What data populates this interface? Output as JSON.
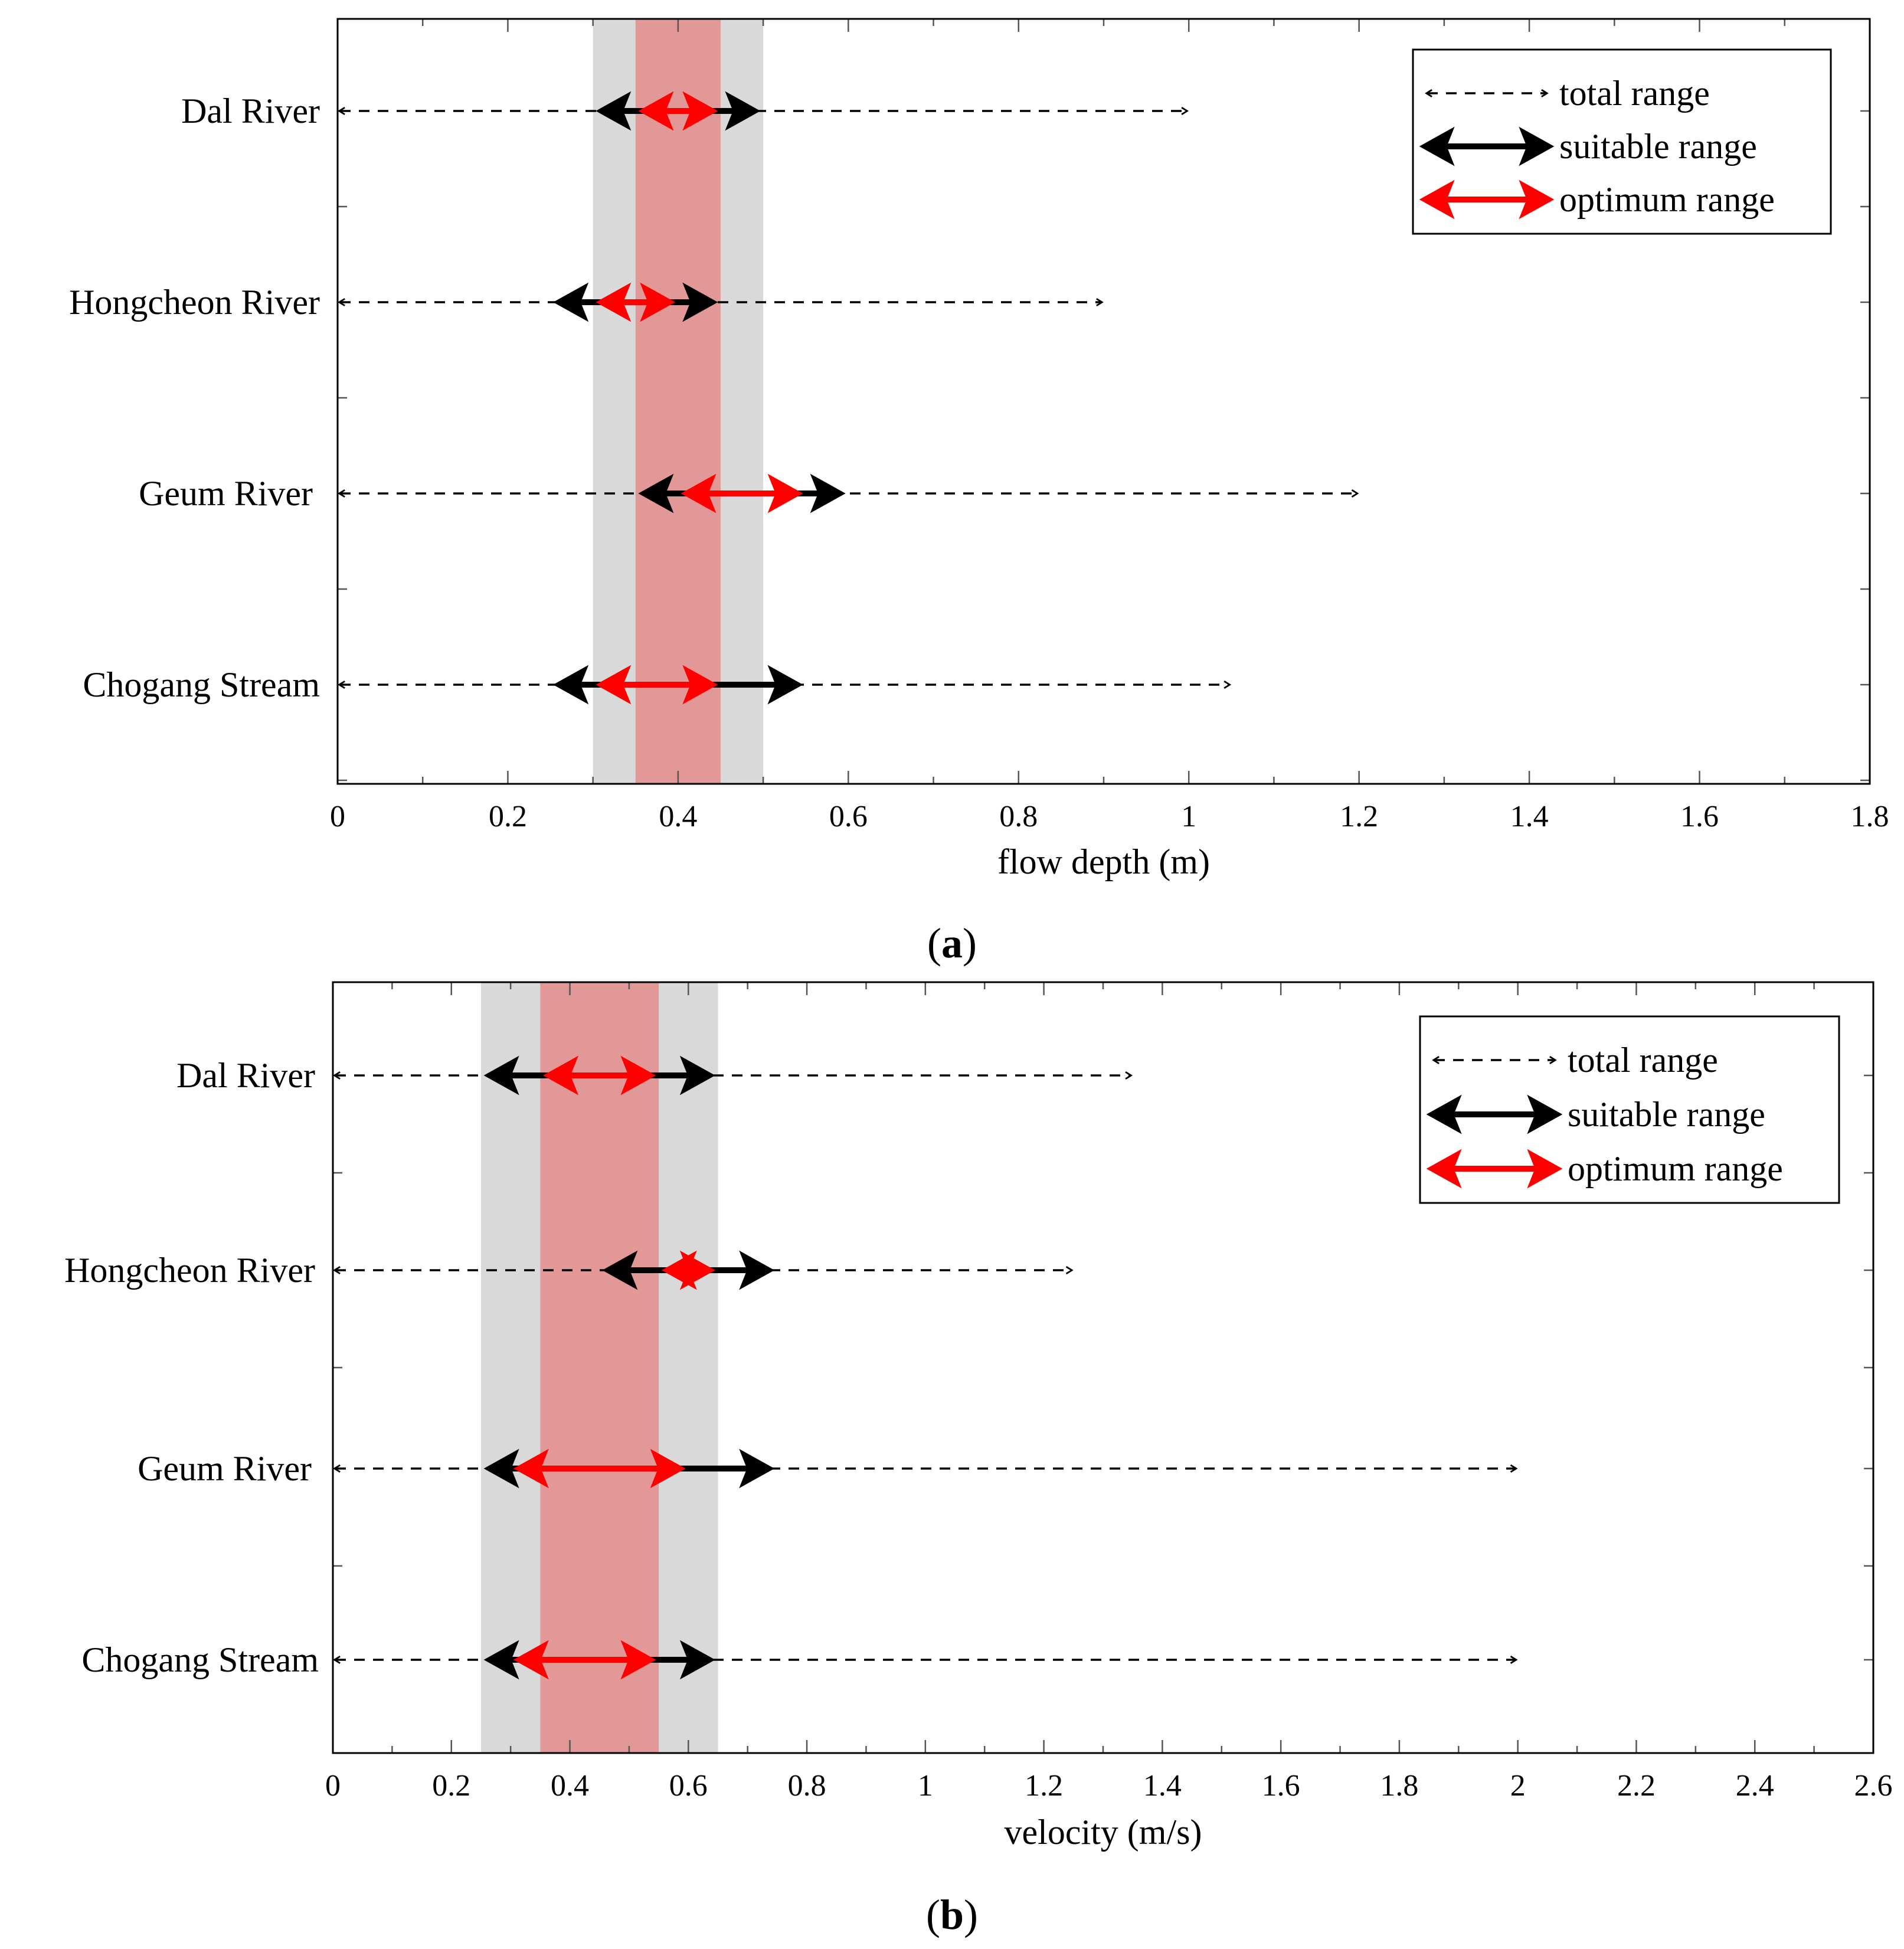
{
  "chart_data": [
    {
      "type": "range",
      "panel_label": {
        "open": "(",
        "letter": "a",
        "close": ")"
      },
      "xlabel": "flow depth (m)",
      "xlim": [
        0,
        1.8
      ],
      "xticks": [
        "0",
        "0.2",
        "0.4",
        "0.6",
        "0.8",
        "1",
        "1.2",
        "1.4",
        "1.6",
        "1.8"
      ],
      "xtick_values": [
        0,
        0.2,
        0.4,
        0.6,
        0.8,
        1.0,
        1.2,
        1.4,
        1.6,
        1.8
      ],
      "categories": [
        "Dal River",
        "Hongcheon River",
        "Geum River",
        "Chogang Stream"
      ],
      "series": [
        {
          "name": "total range",
          "ranges": [
            [
              0,
              1.0
            ],
            [
              0,
              0.9
            ],
            [
              0,
              1.2
            ],
            [
              0,
              1.05
            ]
          ]
        },
        {
          "name": "suitable range",
          "ranges": [
            [
              0.3,
              0.5
            ],
            [
              0.25,
              0.45
            ],
            [
              0.35,
              0.6
            ],
            [
              0.25,
              0.55
            ]
          ]
        },
        {
          "name": "optimum range",
          "ranges": [
            [
              0.35,
              0.45
            ],
            [
              0.3,
              0.4
            ],
            [
              0.4,
              0.55
            ],
            [
              0.3,
              0.45
            ]
          ]
        }
      ],
      "bands": [
        {
          "name": "suitable band",
          "range": [
            0.3,
            0.5
          ],
          "color": "#d9d9d9"
        },
        {
          "name": "optimum band",
          "range": [
            0.35,
            0.45
          ],
          "color": "#e39898"
        }
      ],
      "legend": {
        "position": "top-right",
        "items": [
          "total range",
          "suitable range",
          "optimum range"
        ]
      }
    },
    {
      "type": "range",
      "panel_label": {
        "open": "(",
        "letter": "b",
        "close": ")"
      },
      "xlabel": "velocity (m/s)",
      "xlim": [
        0,
        2.6
      ],
      "xticks": [
        "0",
        "0.2",
        "0.4",
        "0.6",
        "0.8",
        "1",
        "1.2",
        "1.4",
        "1.6",
        "1.8",
        "2",
        "2.2",
        "2.4",
        "2.6"
      ],
      "xtick_values": [
        0,
        0.2,
        0.4,
        0.6,
        0.8,
        1.0,
        1.2,
        1.4,
        1.6,
        1.8,
        2.0,
        2.2,
        2.4,
        2.6
      ],
      "categories": [
        "Dal River",
        "Hongcheon River",
        "Geum River",
        "Chogang Stream"
      ],
      "series": [
        {
          "name": "total range",
          "ranges": [
            [
              0,
              1.35
            ],
            [
              0,
              1.25
            ],
            [
              0,
              2.0
            ],
            [
              0,
              2.0
            ]
          ]
        },
        {
          "name": "suitable range",
          "ranges": [
            [
              0.25,
              0.65
            ],
            [
              0.45,
              0.75
            ],
            [
              0.25,
              0.75
            ],
            [
              0.25,
              0.65
            ]
          ]
        },
        {
          "name": "optimum range",
          "ranges": [
            [
              0.35,
              0.55
            ],
            [
              0.55,
              0.65
            ],
            [
              0.3,
              0.6
            ],
            [
              0.3,
              0.55
            ]
          ]
        }
      ],
      "bands": [
        {
          "name": "suitable band",
          "range": [
            0.25,
            0.65
          ],
          "color": "#d9d9d9"
        },
        {
          "name": "optimum band",
          "range": [
            0.35,
            0.55
          ],
          "color": "#e39898"
        }
      ],
      "legend": {
        "position": "top-right",
        "items": [
          "total range",
          "suitable range",
          "optimum range"
        ]
      }
    }
  ],
  "colors": {
    "total": "#000000",
    "suitable": "#000000",
    "optimum": "#ff0000",
    "axis": "#000000",
    "tick": "#555555"
  }
}
